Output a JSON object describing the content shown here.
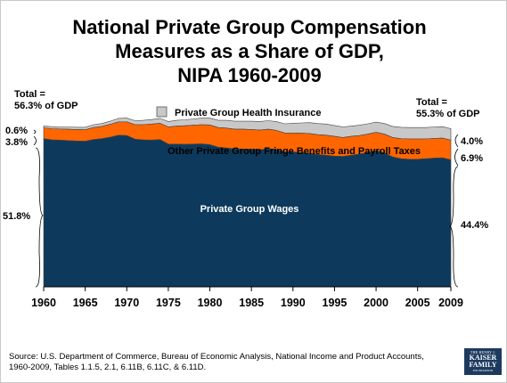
{
  "colors": {
    "wages": "#0d3a5c",
    "fringe": "#ff6600",
    "health": "#c8c8c8",
    "edge": "#444444"
  },
  "chart_data": {
    "type": "area",
    "title": [
      "National Private Group Compensation",
      "Measures as a Share of GDP,",
      "NIPA 1960-2009"
    ],
    "xlim": [
      1960,
      2009
    ],
    "x_ticks": [
      "1960",
      "1965",
      "1970",
      "1975",
      "1980",
      "1985",
      "1990",
      "1995",
      "2000",
      "2005",
      "2009"
    ],
    "ylim": [
      0,
      57
    ],
    "series_labels": {
      "wages": "Private Group Wages",
      "fringe": "Other Private Group Fringe Benefits and Payroll Taxes",
      "health": "Private Group Health Insurance"
    },
    "years": [
      1960,
      1961,
      1962,
      1963,
      1964,
      1965,
      1966,
      1967,
      1968,
      1969,
      1970,
      1971,
      1972,
      1973,
      1974,
      1975,
      1976,
      1977,
      1978,
      1979,
      1980,
      1981,
      1982,
      1983,
      1984,
      1985,
      1986,
      1987,
      1988,
      1989,
      1990,
      1991,
      1992,
      1993,
      1994,
      1995,
      1996,
      1997,
      1998,
      1999,
      2000,
      2001,
      2002,
      2003,
      2004,
      2005,
      2006,
      2007,
      2008,
      2009
    ],
    "wages": [
      51.8,
      51.4,
      51.3,
      51.1,
      51.0,
      50.9,
      51.5,
      51.8,
      52.3,
      53.0,
      52.9,
      51.6,
      51.4,
      51.3,
      51.5,
      49.9,
      49.9,
      49.8,
      49.9,
      50.0,
      49.7,
      48.8,
      48.6,
      48.2,
      48.2,
      48.2,
      47.9,
      48.3,
      48.0,
      47.2,
      47.2,
      46.9,
      46.7,
      46.3,
      46.0,
      45.7,
      45.6,
      46.0,
      46.4,
      47.0,
      47.6,
      46.8,
      45.4,
      44.8,
      44.6,
      44.6,
      44.8,
      45.0,
      45.1,
      44.4
    ],
    "fringe": [
      3.8,
      3.9,
      3.9,
      4.0,
      4.0,
      4.0,
      4.2,
      4.3,
      4.5,
      4.7,
      4.8,
      5.1,
      5.3,
      5.6,
      5.7,
      6.0,
      6.3,
      6.5,
      6.6,
      6.7,
      6.9,
      6.9,
      6.9,
      6.9,
      6.9,
      6.8,
      6.9,
      6.8,
      6.7,
      6.6,
      6.6,
      6.8,
      6.9,
      6.9,
      7.0,
      6.9,
      6.6,
      6.6,
      6.5,
      6.4,
      6.4,
      6.6,
      6.8,
      7.0,
      7.1,
      7.1,
      6.9,
      6.9,
      6.9,
      6.9
    ],
    "health": [
      0.6,
      0.7,
      0.7,
      0.8,
      0.8,
      0.9,
      1.0,
      1.0,
      1.1,
      1.2,
      1.3,
      1.4,
      1.5,
      1.6,
      1.7,
      1.9,
      2.0,
      2.1,
      2.2,
      2.3,
      2.4,
      2.5,
      2.7,
      2.8,
      2.8,
      2.9,
      3.0,
      3.0,
      3.1,
      3.2,
      3.4,
      3.6,
      3.8,
      3.9,
      3.9,
      3.8,
      3.7,
      3.6,
      3.6,
      3.6,
      3.6,
      3.7,
      3.9,
      4.0,
      4.0,
      4.0,
      4.0,
      4.0,
      4.0,
      4.0
    ],
    "annotations": {
      "total_left": [
        "Total =",
        "56.3% of GDP"
      ],
      "total_right": [
        "Total =",
        "55.3% of GDP"
      ],
      "left_health": "0.6%",
      "left_fringe": "3.8%",
      "left_wages": "51.8%",
      "right_health": "4.0%",
      "right_fringe": "6.9%",
      "right_wages": "44.4%"
    }
  },
  "source": "Source:  U.S. Department of Commerce, Bureau of Economic Analysis, National Income and Product Accounts, 1960-2009, Tables 1.1.5, 2.1, 6.11B, 6.11C, & 6.11D.",
  "logo": {
    "line1": "THE HENRY J.",
    "line2": "KAISER",
    "line3": "FAMILY",
    "line4": "FOUNDATION"
  }
}
